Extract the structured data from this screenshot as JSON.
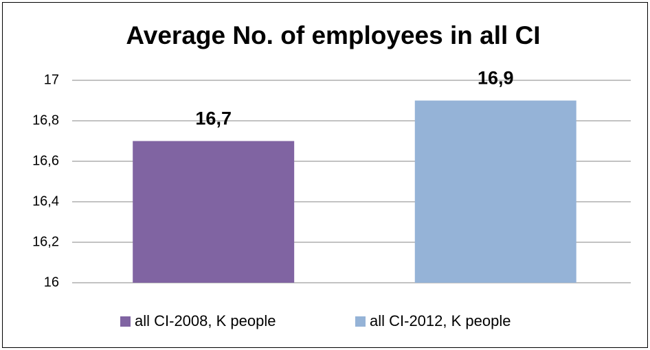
{
  "chart_data": {
    "type": "bar",
    "title": "Average No. of employees in all CI",
    "categories": [
      null
    ],
    "series": [
      {
        "name": "all CI-2008, K people",
        "color": "#8064a2",
        "values": [
          16.7
        ],
        "value_labels": [
          "16,7"
        ]
      },
      {
        "name": "all CI-2012, K people",
        "color": "#95b3d7",
        "values": [
          16.9
        ],
        "value_labels": [
          "16,9"
        ]
      }
    ],
    "ylim": [
      16,
      17
    ],
    "yticks": [
      16,
      {
        "value": 16.2,
        "label": "16,2"
      },
      {
        "value": 16.4,
        "label": "16,4"
      },
      {
        "value": 16.6,
        "label": "16,6"
      },
      {
        "value": 16.8,
        "label": "16,8"
      },
      17
    ],
    "grid": true,
    "legend": "bottom"
  }
}
